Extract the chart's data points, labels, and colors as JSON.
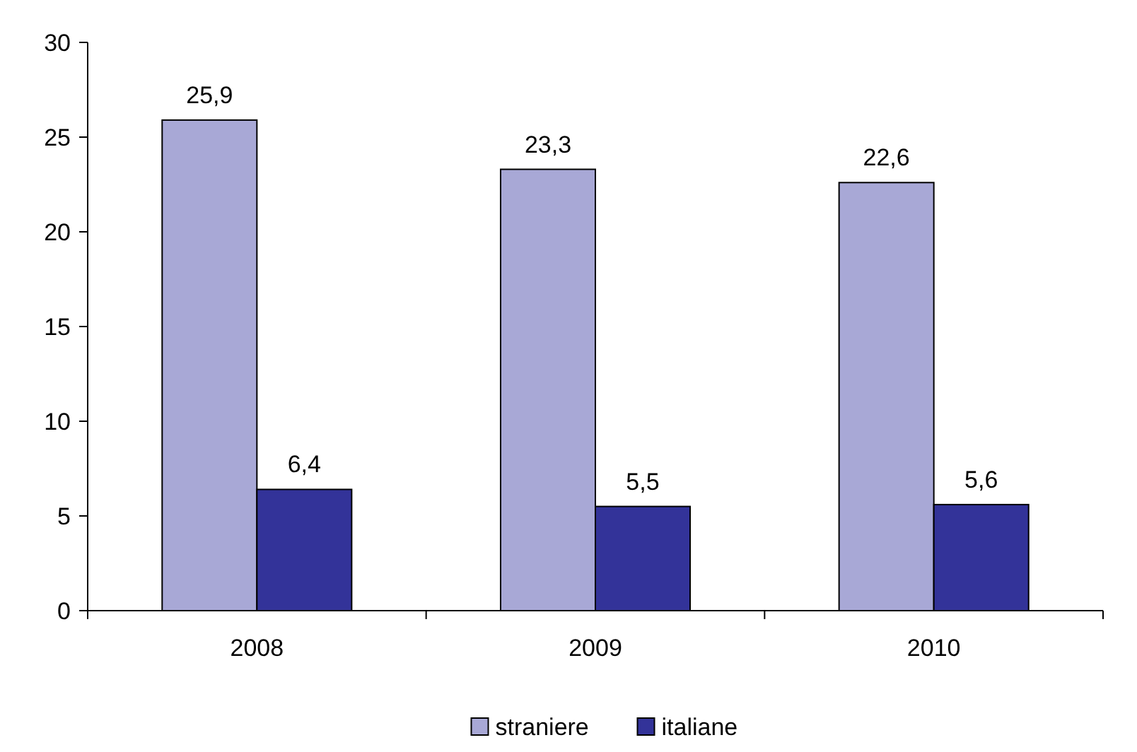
{
  "chart_data": {
    "type": "bar",
    "categories": [
      "2008",
      "2009",
      "2010"
    ],
    "series": [
      {
        "name": "straniere",
        "color": "#a8a8d6",
        "values": [
          25.9,
          23.3,
          22.6
        ],
        "value_labels": [
          "25,9",
          "23,3",
          "22,6"
        ]
      },
      {
        "name": "italiane",
        "color": "#333399",
        "values": [
          6.4,
          5.5,
          5.6
        ],
        "value_labels": [
          "6,4",
          "5,5",
          "5,6"
        ]
      }
    ],
    "ylim": [
      0,
      30
    ],
    "yticks": [
      0,
      5,
      10,
      15,
      20,
      25,
      30
    ],
    "grid": false,
    "legend": "bottom"
  }
}
